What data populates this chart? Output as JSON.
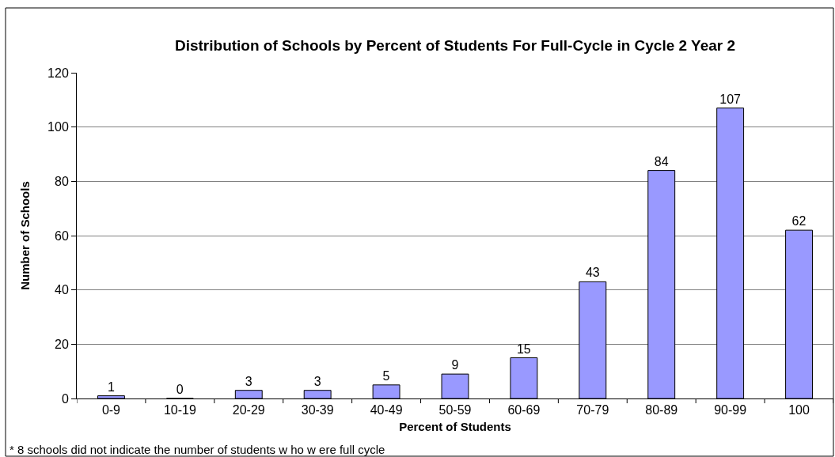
{
  "chart_data": {
    "type": "bar",
    "title": "Distribution of Schools by Percent of Students For Full-Cycle in Cycle 2 Year 2",
    "xlabel": "Percent of Students",
    "ylabel": "Number of Schools",
    "categories": [
      "0-9",
      "10-19",
      "20-29",
      "30-39",
      "40-49",
      "50-59",
      "60-69",
      "70-79",
      "80-89",
      "90-99",
      "100"
    ],
    "values": [
      1,
      0,
      3,
      3,
      5,
      9,
      15,
      43,
      84,
      107,
      62
    ],
    "color": "#9999ff",
    "ylim": [
      0,
      120
    ],
    "yticks": [
      0,
      20,
      40,
      60,
      80,
      100,
      120
    ],
    "grid": "y",
    "data_labels": true,
    "annotations": [
      "* 8 schools did not indicate the number of students w ho w ere full cycle"
    ]
  }
}
